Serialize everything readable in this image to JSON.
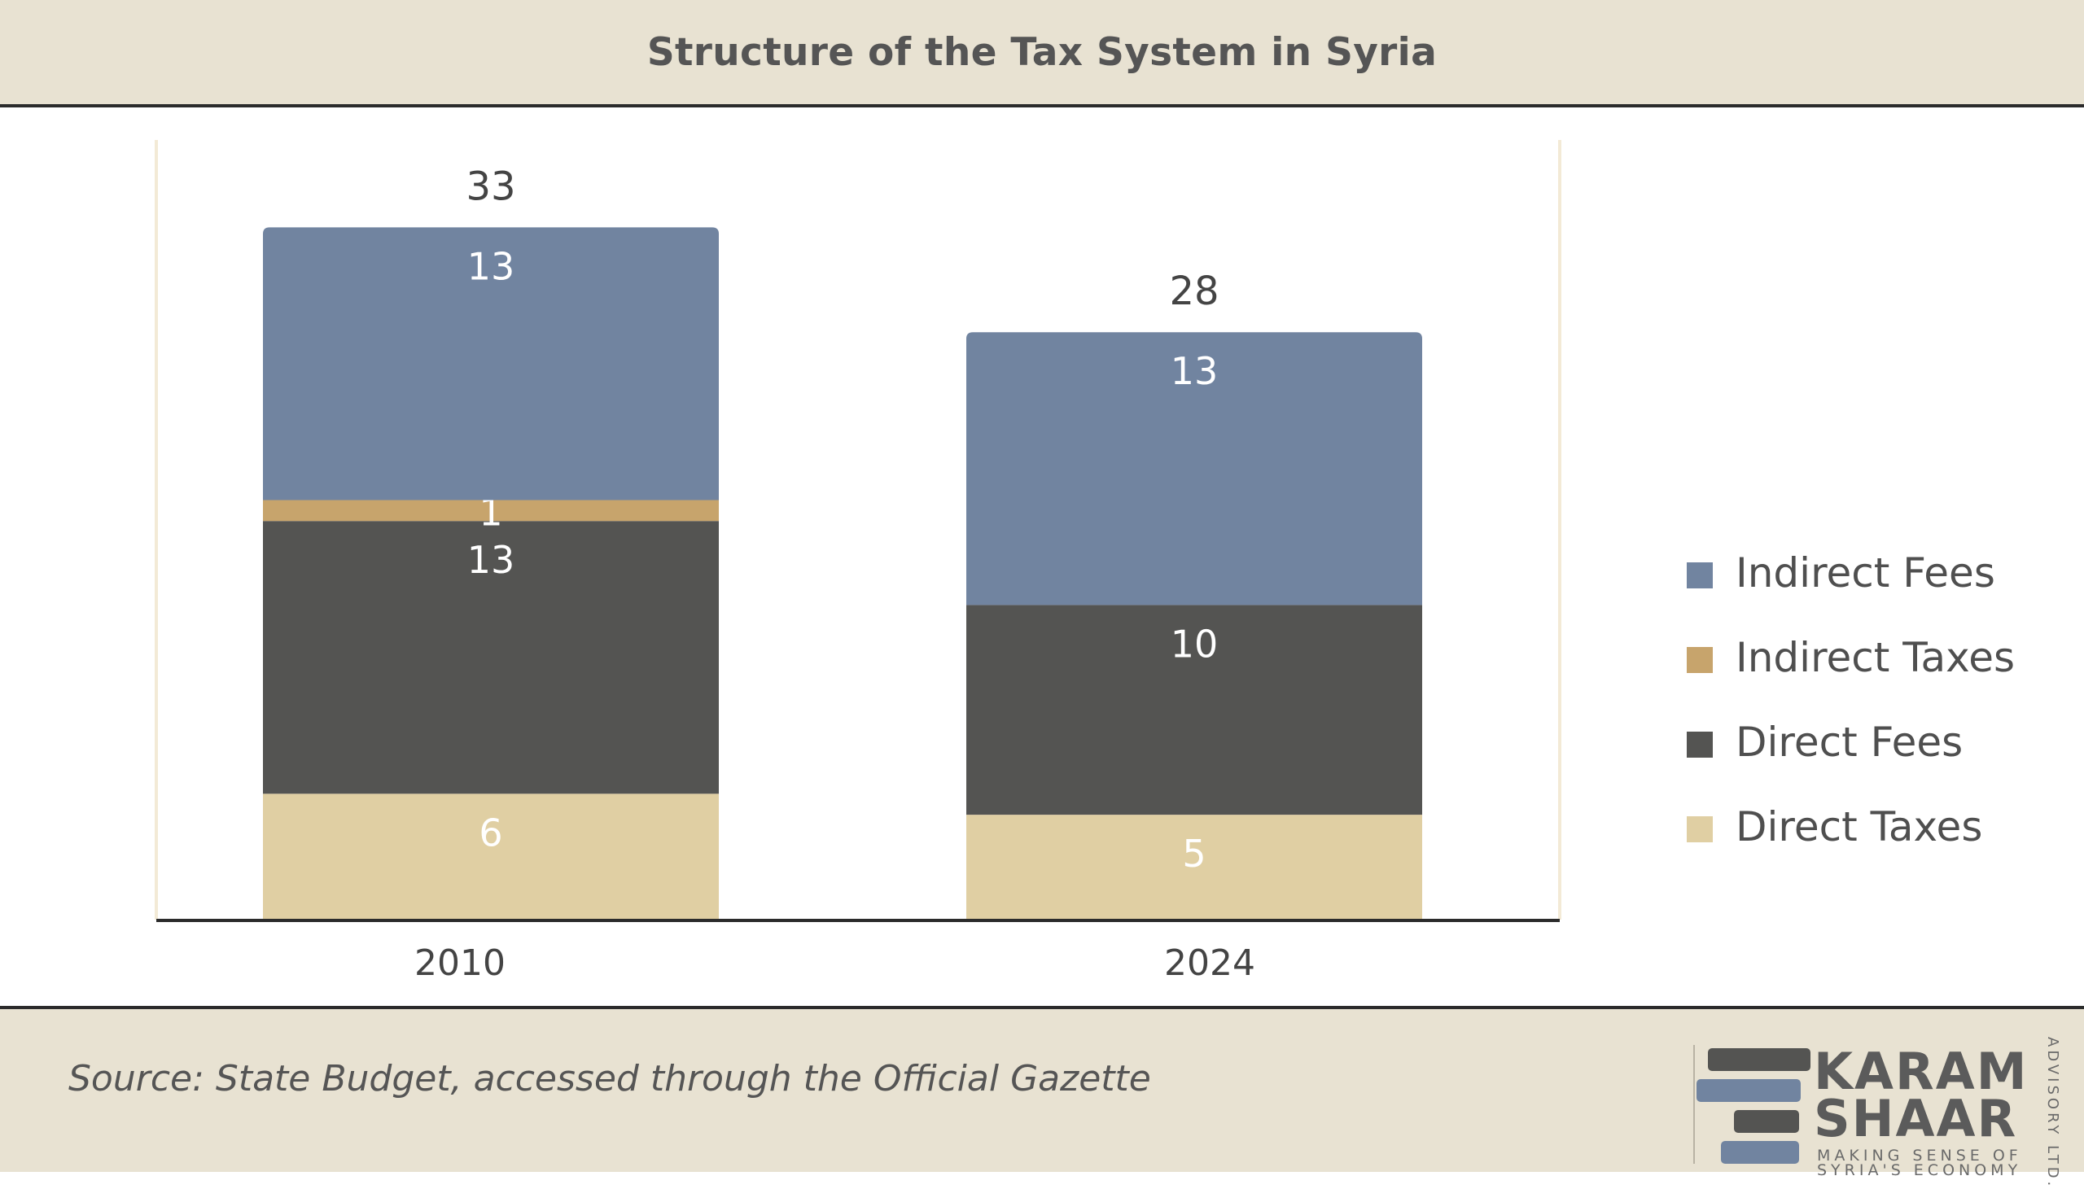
{
  "title": "Structure of the Tax System in Syria",
  "source": "Source: State Budget, accessed through the Official Gazette",
  "logo": {
    "line1": "KARAM",
    "line2": "SHAAR",
    "tagline1": "MAKING SENSE OF",
    "tagline2": "SYRIA'S ECONOMY",
    "vertical": "ADVISORY LTD."
  },
  "colors": {
    "Indirect Fees": "#7184a0",
    "Indirect Taxes": "#c7a46c",
    "Direct Fees": "#545452",
    "Direct Taxes": "#e0cfa3"
  },
  "chart_data": {
    "type": "bar",
    "stacked": true,
    "categories": [
      "2010",
      "2024"
    ],
    "series": [
      {
        "name": "Direct Taxes",
        "values": [
          6,
          5
        ]
      },
      {
        "name": "Direct Fees",
        "values": [
          13,
          10
        ]
      },
      {
        "name": "Indirect Taxes",
        "values": [
          1,
          null
        ]
      },
      {
        "name": "Indirect Fees",
        "values": [
          13,
          13
        ]
      }
    ],
    "totals": [
      33,
      28
    ],
    "legend_order": [
      "Indirect Fees",
      "Indirect Taxes",
      "Direct Fees",
      "Direct Taxes"
    ],
    "legend_position": "right",
    "ylim": [
      0,
      36
    ],
    "grid": false
  }
}
